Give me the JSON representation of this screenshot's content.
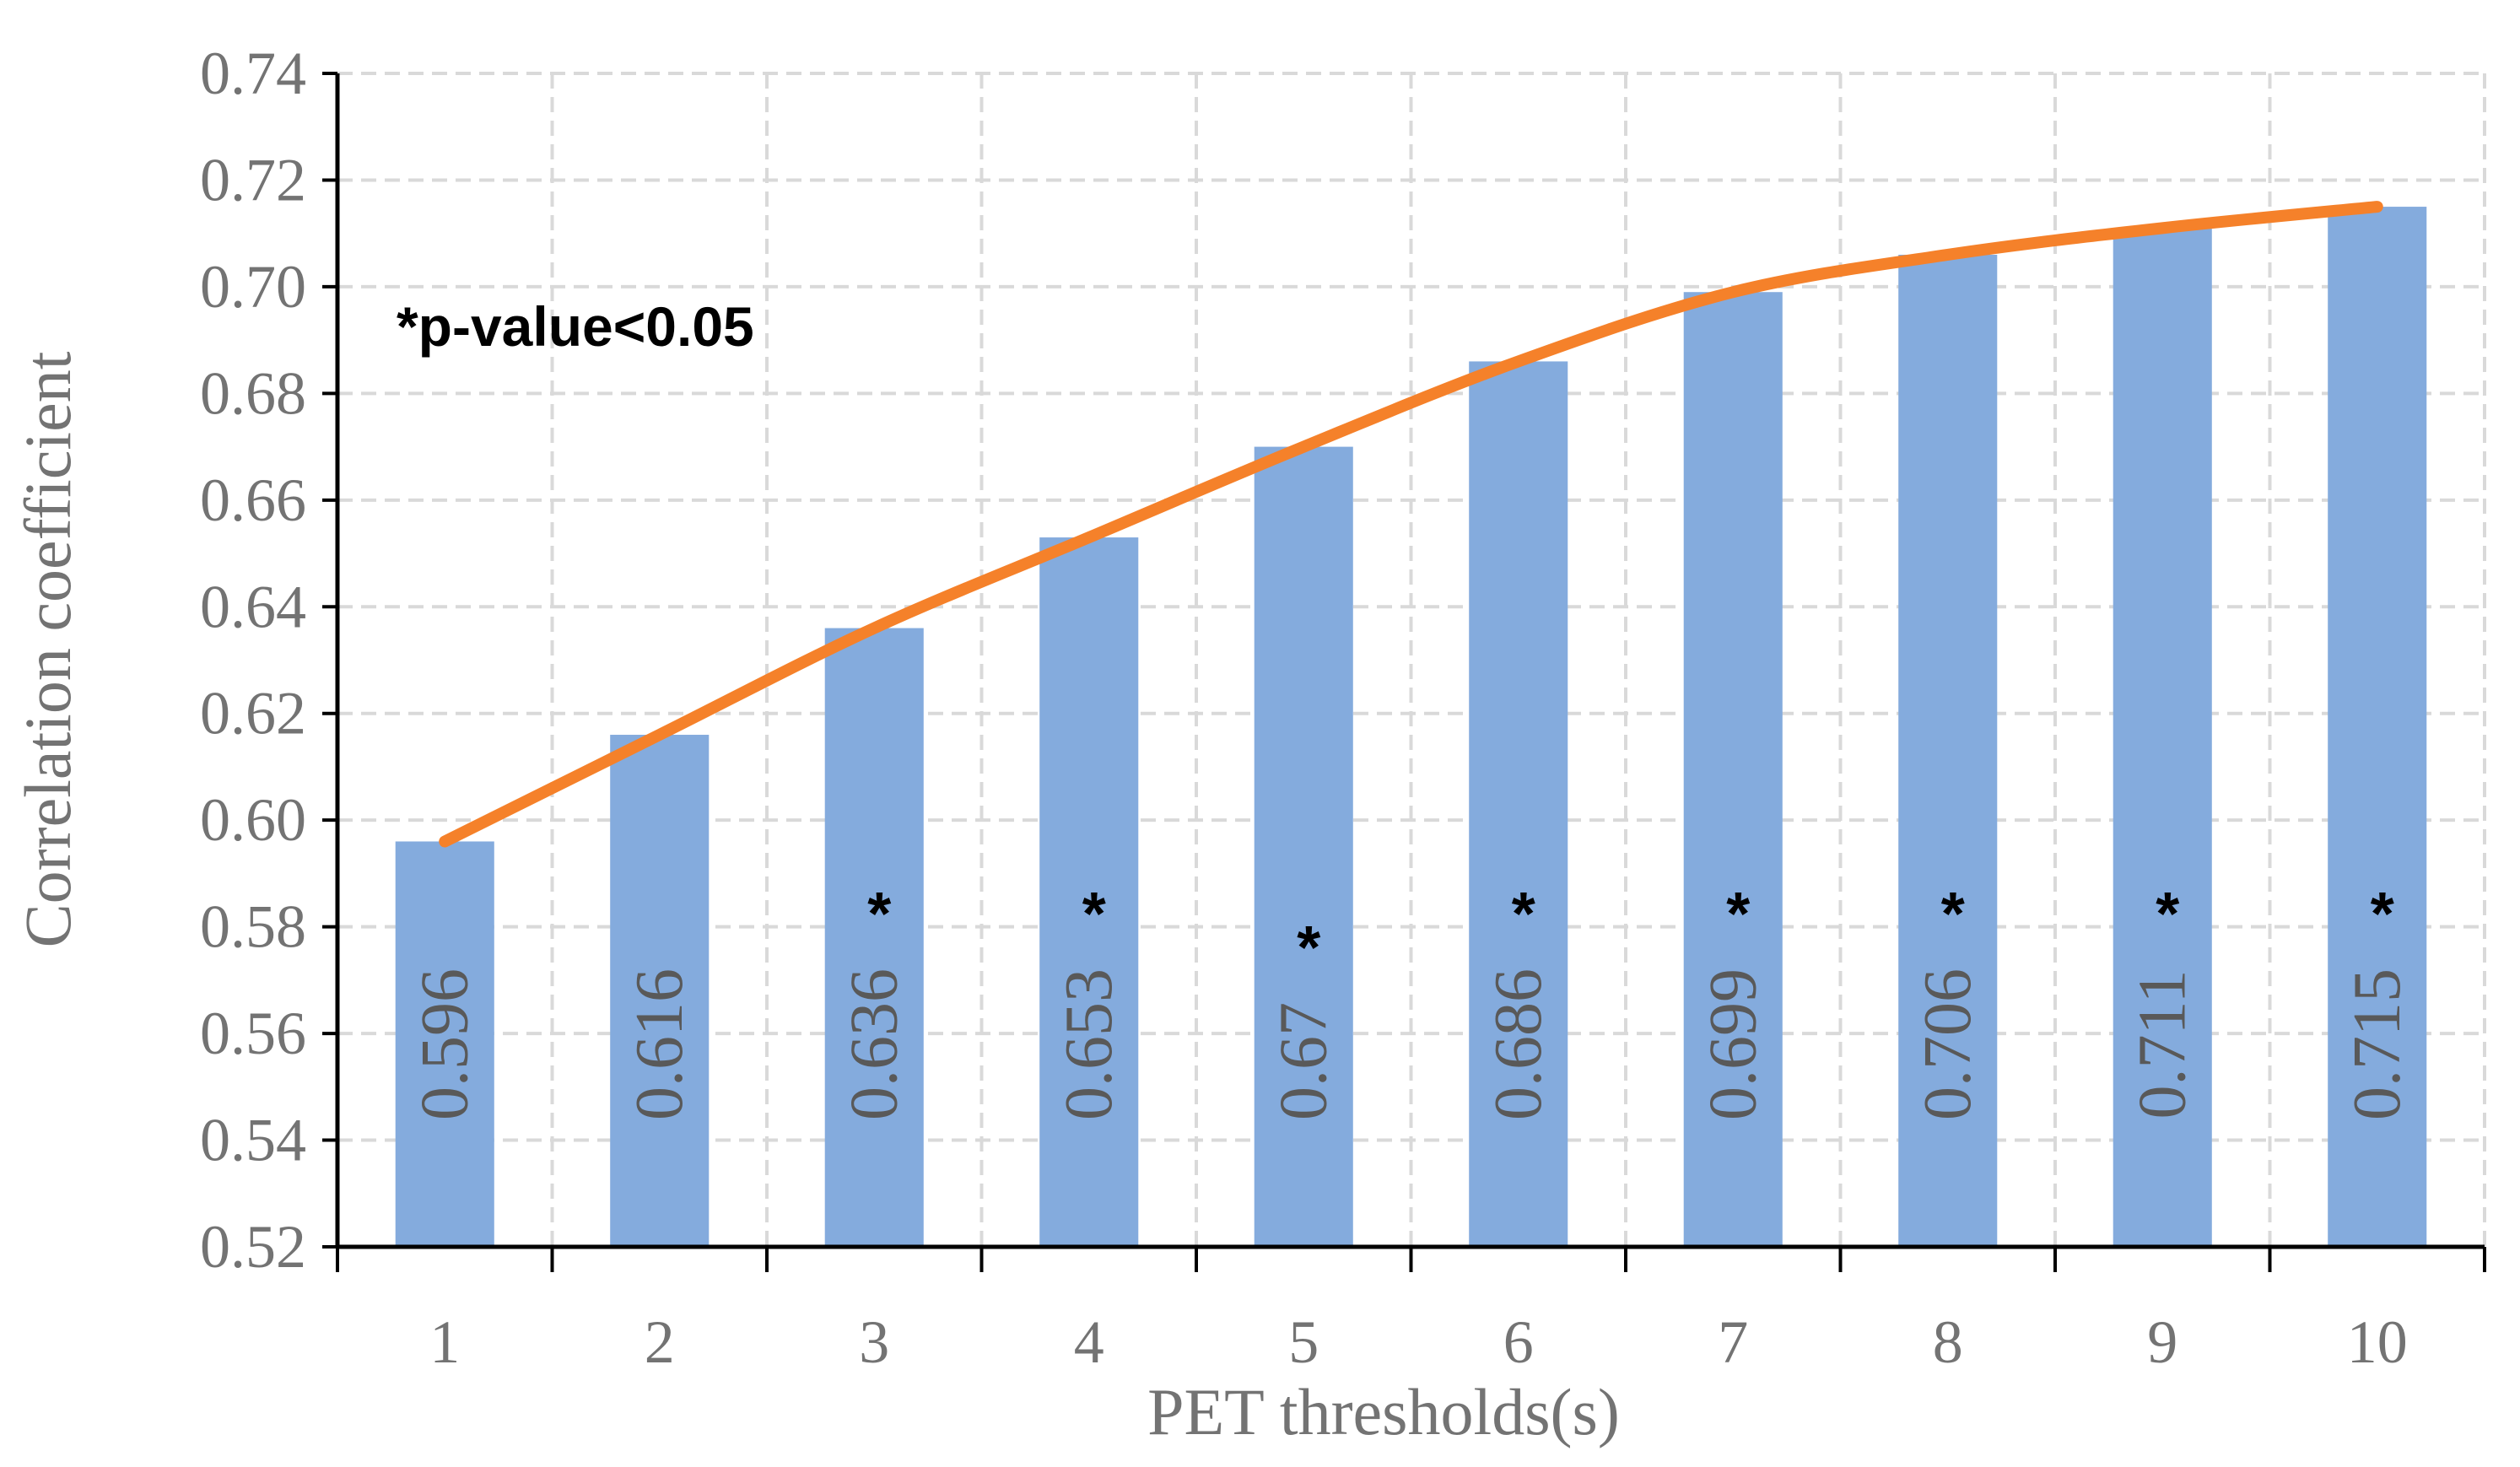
{
  "chart_data": {
    "type": "bar",
    "categories": [
      "1",
      "2",
      "3",
      "4",
      "5",
      "6",
      "7",
      "8",
      "9",
      "10"
    ],
    "series": [
      {
        "values": [
          0.596,
          0.616,
          0.636,
          0.653,
          0.67,
          0.686,
          0.699,
          0.706,
          0.711,
          0.715
        ]
      }
    ],
    "data_labels": [
      "0.596",
      "0.616",
      "0.636",
      "0.653",
      "0.67",
      "0.686",
      "0.699",
      "0.706",
      "0.711",
      "0.715"
    ],
    "significant": [
      false,
      false,
      true,
      true,
      true,
      true,
      true,
      true,
      true,
      true
    ],
    "significance_marker": "*",
    "trend_line": {
      "type": "smooth-line",
      "color": "#f5812a",
      "values": [
        0.596,
        0.616,
        0.636,
        0.653,
        0.67,
        0.686,
        0.699,
        0.706,
        0.711,
        0.715
      ]
    },
    "title": "",
    "xlabel": "PET thresholds(s)",
    "ylabel": "Correlation coefficient",
    "ylim": [
      0.52,
      0.74
    ],
    "yticks": [
      "0.52",
      "0.54",
      "0.56",
      "0.58",
      "0.60",
      "0.62",
      "0.64",
      "0.66",
      "0.68",
      "0.70",
      "0.72",
      "0.74"
    ],
    "annotation": "*p-value<0.05",
    "grid": true,
    "grid_style": "dashed",
    "bar_color": "#84abdd",
    "legend": "none"
  }
}
